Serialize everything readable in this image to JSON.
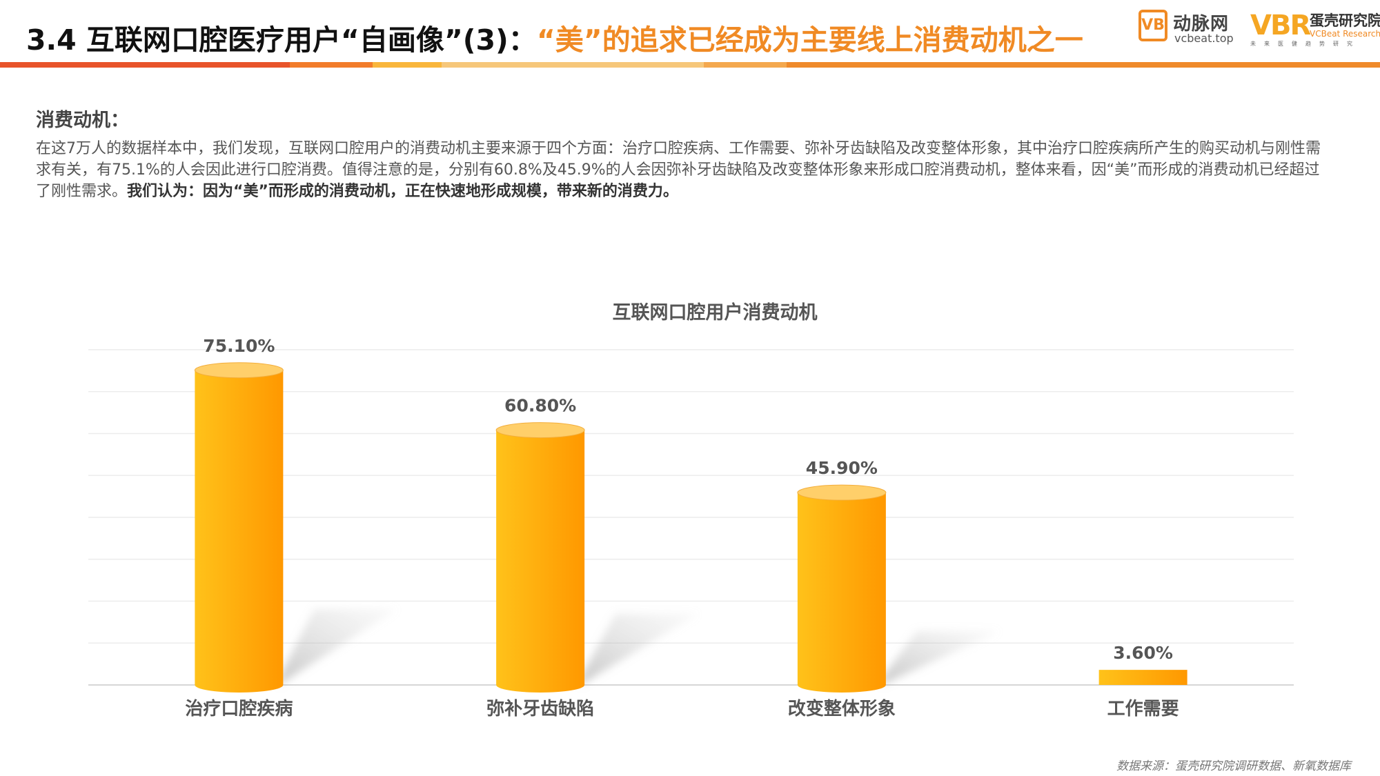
{
  "header": {
    "title_main": "3.4 互联网口腔医疗用户“自画像”(3)：",
    "title_highlight": "“美”的追求已经成为主要线上消费动机之一",
    "logo_vcbeat_mark": "VB",
    "logo_vcbeat_cn": "动脉网",
    "logo_vcbeat_en": "vcbeat.top",
    "logo_vbr_mark": "VBR",
    "logo_vbr_cn": "蛋壳研究院",
    "logo_vbr_en": "VCBeat Research",
    "logo_vbr_tagline": "未来医健趋势研究"
  },
  "body": {
    "section_heading": "消费动机：",
    "paragraph_text": "在这7万人的数据样本中，我们发现，互联网口腔用户的消费动机主要来源于四个方面：治疗口腔疾病、工作需要、弥补牙齿缺陷及改变整体形象，其中治疗口腔疾病所产生的购买动机与刚性需求有关，有75.1%的人会因此进行口腔消费。值得注意的是，分别有60.8%及45.9%的人会因弥补牙齿缺陷及改变整体形象来形成口腔消费动机，整体来看，因“美”而形成的消费动机已经超过了刚性需求。",
    "paragraph_bold": "我们认为：因为“美”而形成的消费动机，正在快速地形成规模，带来新的消费力。"
  },
  "chart_data": {
    "type": "bar",
    "title": "互联网口腔用户消费动机",
    "categories": [
      "治疗口腔疾病",
      "弥补牙齿缺陷",
      "改变整体形象",
      "工作需要"
    ],
    "values": [
      75.1,
      60.8,
      45.9,
      3.6
    ],
    "value_labels": [
      "75.10%",
      "60.80%",
      "45.90%",
      "3.60%"
    ],
    "unit": "%",
    "ylim": [
      0,
      80
    ],
    "grid": true,
    "legend": "none",
    "bar_shape": "cylinder",
    "colors": {
      "bar_light": "#ffc21a",
      "bar_dark": "#ff9800",
      "bar_top": "#ffcf6a"
    }
  },
  "footer": {
    "source": "数据来源：蛋壳研究院调研数据、新氧数据库"
  }
}
